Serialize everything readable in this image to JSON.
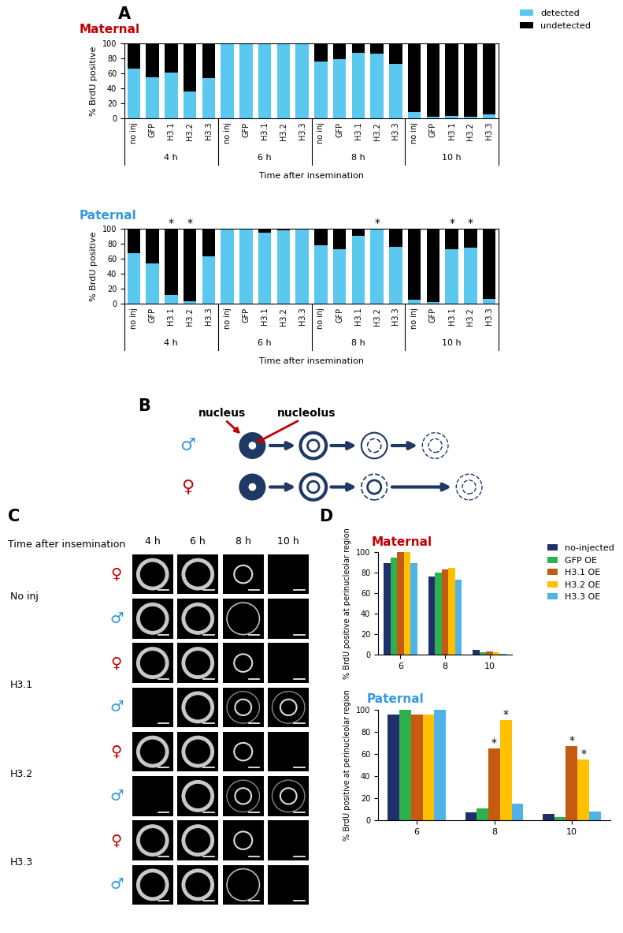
{
  "panel_labels": [
    "A",
    "B",
    "C",
    "D"
  ],
  "chart_data": [
    {
      "type": "bar",
      "stacked": true,
      "title": "Maternal",
      "legend": "upper right",
      "categories": [
        "no inj",
        "GFP",
        "H3.1",
        "H3.2",
        "H3.3",
        "no inj",
        "GFP",
        "H3.1",
        "H3.2",
        "H3.3",
        "no inj",
        "GFP",
        "H3.1",
        "H3.2",
        "H3.3",
        "no inj",
        "GFP",
        "H3.1",
        "H3.2",
        "H3.3"
      ],
      "groups": [
        "4 h",
        "6 h",
        "8 h",
        "10 h"
      ],
      "x_label": "Time after insemination",
      "y_label": "% BrdU positive",
      "ylim": [
        0,
        100
      ],
      "yticks": [
        0,
        20,
        40,
        60,
        80,
        100
      ],
      "series": [
        {
          "name": "detected",
          "color": "#5bc8f0",
          "values": [
            66,
            55,
            61,
            36,
            54,
            100,
            100,
            100,
            100,
            100,
            76,
            79,
            87,
            86,
            73,
            8,
            2,
            3,
            2,
            5
          ]
        },
        {
          "name": "undetected",
          "color": "#000000",
          "values": [
            34,
            45,
            39,
            64,
            46,
            0,
            0,
            0,
            0,
            0,
            24,
            21,
            13,
            14,
            27,
            92,
            98,
            97,
            98,
            95
          ]
        }
      ],
      "annotations": [
        null,
        null,
        null,
        null,
        null,
        null,
        null,
        null,
        null,
        null,
        null,
        null,
        null,
        null,
        null,
        null,
        null,
        null,
        null,
        null
      ]
    },
    {
      "type": "bar",
      "stacked": true,
      "title": "Paternal",
      "categories": [
        "no inj",
        "GFP",
        "H3.1",
        "H3.2",
        "H3.3",
        "no inj",
        "GFP",
        "H3.1",
        "H3.2",
        "H3.3",
        "no inj",
        "GFP",
        "H3.1",
        "H3.2",
        "H3.3",
        "no inj",
        "GFP",
        "H3.1",
        "H3.2",
        "H3.3"
      ],
      "groups": [
        "4 h",
        "6 h",
        "8 h",
        "10 h"
      ],
      "x_label": "Time after insemination",
      "y_label": "% BrdU positive",
      "ylim": [
        0,
        100
      ],
      "yticks": [
        0,
        20,
        40,
        60,
        80,
        100
      ],
      "series": [
        {
          "name": "detected",
          "color": "#5bc8f0",
          "values": [
            67,
            54,
            12,
            3,
            63,
            100,
            100,
            95,
            98,
            100,
            78,
            73,
            91,
            99,
            76,
            5,
            2,
            73,
            75,
            6
          ]
        },
        {
          "name": "undetected",
          "color": "#000000",
          "values": [
            33,
            46,
            88,
            97,
            37,
            0,
            0,
            5,
            2,
            0,
            22,
            27,
            9,
            1,
            24,
            95,
            98,
            27,
            25,
            94
          ]
        }
      ],
      "annotations": [
        null,
        null,
        "*",
        "*",
        null,
        null,
        null,
        null,
        null,
        null,
        null,
        null,
        null,
        "*",
        null,
        null,
        null,
        "*",
        "*",
        null
      ]
    },
    {
      "type": "bar",
      "stacked": false,
      "title": "Maternal",
      "legend": "upper right",
      "categories": [
        "6",
        "8",
        "10"
      ],
      "y_label": "% BrdU positive at perinucleolar region",
      "ylim": [
        0,
        100
      ],
      "yticks": [
        0,
        20,
        40,
        60,
        80,
        100
      ],
      "series": [
        {
          "name": "no-injected",
          "color": "#1f2f6b",
          "values": [
            89,
            76,
            5
          ],
          "annotations": [
            null,
            null,
            null
          ]
        },
        {
          "name": "GFP OE",
          "color": "#2eb04f",
          "values": [
            95,
            80,
            2
          ],
          "annotations": [
            null,
            null,
            null
          ]
        },
        {
          "name": "H3.1 OE",
          "color": "#c55a11",
          "values": [
            100,
            83,
            3
          ],
          "annotations": [
            null,
            null,
            null
          ]
        },
        {
          "name": "H3.2 OE",
          "color": "#ffc000",
          "values": [
            100,
            85,
            2
          ],
          "annotations": [
            null,
            null,
            null
          ]
        },
        {
          "name": "H3.3 OE",
          "color": "#4fb3e8",
          "values": [
            89,
            73,
            1
          ],
          "annotations": [
            null,
            null,
            null
          ]
        }
      ]
    },
    {
      "type": "bar",
      "stacked": false,
      "title": "Paternal",
      "categories": [
        "6",
        "8",
        "10"
      ],
      "y_label": "% BrdU positive at perinucleolar region",
      "ylim": [
        0,
        100
      ],
      "yticks": [
        0,
        20,
        40,
        60,
        80,
        100
      ],
      "series": [
        {
          "name": "no-injected",
          "color": "#1f2f6b",
          "values": [
            96,
            7,
            6
          ],
          "annotations": [
            null,
            null,
            null
          ]
        },
        {
          "name": "GFP OE",
          "color": "#2eb04f",
          "values": [
            100,
            11,
            3
          ],
          "annotations": [
            null,
            null,
            null
          ]
        },
        {
          "name": "H3.1 OE",
          "color": "#c55a11",
          "values": [
            96,
            65,
            67
          ],
          "annotations": [
            null,
            "*",
            "*"
          ]
        },
        {
          "name": "H3.2 OE",
          "color": "#ffc000",
          "values": [
            96,
            91,
            55
          ],
          "annotations": [
            null,
            "*",
            "*"
          ]
        },
        {
          "name": "H3.3 OE",
          "color": "#4fb3e8",
          "values": [
            100,
            15,
            8
          ],
          "annotations": [
            null,
            null,
            null
          ]
        }
      ]
    }
  ],
  "diagram": {
    "labels": [
      "nucleus",
      "nucleolus"
    ],
    "rows": [
      "♂",
      "♀"
    ]
  },
  "images": {
    "header": "Time after insemination",
    "columns": [
      "4 h",
      "6 h",
      "8 h",
      "10 h"
    ],
    "rows": [
      {
        "label": "No inj",
        "sexes": [
          "♀",
          "♂"
        ]
      },
      {
        "label": "H3.1",
        "sexes": [
          "♀",
          "♂"
        ]
      },
      {
        "label": "H3.2",
        "sexes": [
          "♀",
          "♂"
        ]
      },
      {
        "label": "H3.3",
        "sexes": [
          "♀",
          "♂"
        ]
      }
    ]
  }
}
